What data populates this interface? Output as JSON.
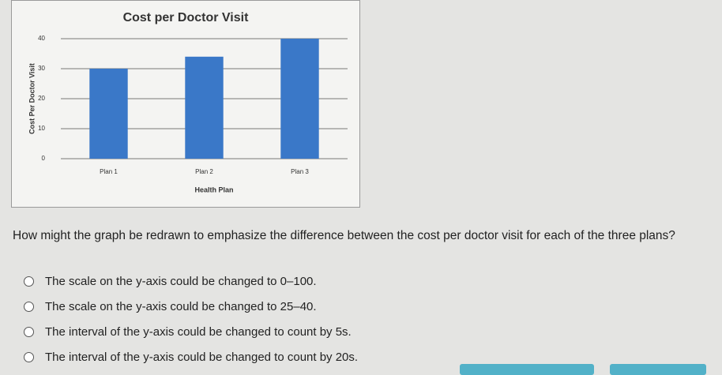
{
  "chart_data": {
    "type": "bar",
    "title": "Cost per Doctor Visit",
    "x_label": "Health Plan",
    "y_label": "Cost Per Doctor Visit",
    "categories": [
      "Plan 1",
      "Plan 2",
      "Plan 3"
    ],
    "values": [
      30,
      34,
      40
    ],
    "color": "#3a78c8",
    "ylim": [
      0,
      40
    ],
    "yticks": [
      0,
      10,
      20,
      30,
      40
    ],
    "grid": true
  },
  "question": "How might the graph be redrawn to emphasize the difference between the cost per doctor visit for each of the three plans?",
  "options": [
    "The scale on the y-axis could be changed to 0–100.",
    "The scale on the y-axis could be changed to 25–40.",
    "The interval of the y-axis could be changed to count by 5s.",
    "The interval of the y-axis could be changed to count by 20s."
  ]
}
